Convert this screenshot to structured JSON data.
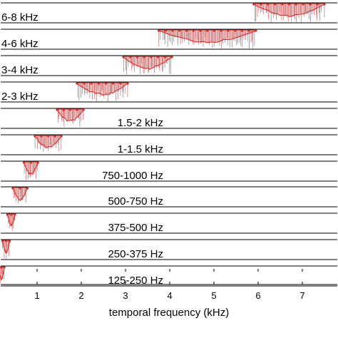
{
  "chart_data": {
    "type": "area",
    "xlabel": "temporal frequency (kHz)",
    "x_ticks": [
      1,
      2,
      3,
      4,
      5,
      6,
      7
    ],
    "xlim": [
      0,
      7.5
    ],
    "grid": false,
    "colors": {
      "line": "#d62a2a",
      "fill": "#e06a6a",
      "stem": "#555555",
      "frame": "#000000"
    },
    "bands": [
      {
        "label": "6-8 kHz",
        "range_khz": [
          5.9,
          7.5
        ],
        "label_side": "left"
      },
      {
        "label": "4-6 kHz",
        "range_khz": [
          3.75,
          5.95
        ],
        "label_side": "left"
      },
      {
        "label": "3-4 kHz",
        "range_khz": [
          2.95,
          4.05
        ],
        "label_side": "left"
      },
      {
        "label": "2-3 kHz",
        "range_khz": [
          1.9,
          3.05
        ],
        "label_side": "left"
      },
      {
        "label": "1.5-2 kHz",
        "range_khz": [
          1.45,
          2.05
        ],
        "label_side": "right"
      },
      {
        "label": "1-1.5 kHz",
        "range_khz": [
          0.95,
          1.55
        ],
        "label_side": "right"
      },
      {
        "label": "750-1000 Hz",
        "range_khz": [
          0.7,
          1.02
        ],
        "label_side": "right"
      },
      {
        "label": "500-750 Hz",
        "range_khz": [
          0.45,
          0.78
        ],
        "label_side": "right"
      },
      {
        "label": "375-500 Hz",
        "range_khz": [
          0.33,
          0.5
        ],
        "label_side": "right"
      },
      {
        "label": "250-375 Hz",
        "range_khz": [
          0.22,
          0.38
        ],
        "label_side": "right"
      },
      {
        "label": "125-250 Hz",
        "range_khz": [
          0.12,
          0.26
        ],
        "label_side": "right"
      }
    ]
  }
}
